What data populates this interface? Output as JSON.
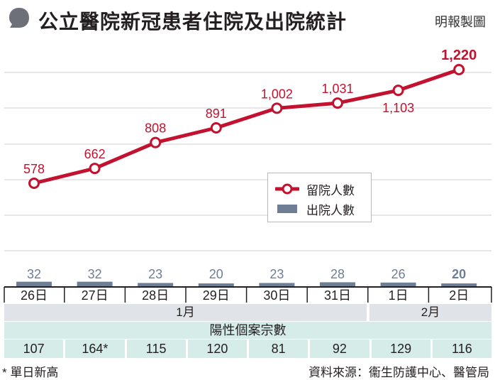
{
  "header": {
    "title": "公立醫院新冠患者住院及出院統計",
    "brand": "明報製圖"
  },
  "colors": {
    "line": "#c3122f",
    "bar": "#6e7f95",
    "bar_label": "#6e7f95",
    "month_row": "#e0e4e8",
    "cases_row": "#d6ece9"
  },
  "chart_data": {
    "type": "line",
    "categories": [
      "26日",
      "27日",
      "28日",
      "29日",
      "30日",
      "31日",
      "1日",
      "2日"
    ],
    "series": [
      {
        "name": "留院人數",
        "type": "line",
        "values": [
          578,
          662,
          808,
          891,
          1002,
          1031,
          1103,
          1220
        ],
        "labels": [
          "578",
          "662",
          "808",
          "891",
          "1,002",
          "1,031",
          "1,103",
          "1,220"
        ]
      },
      {
        "name": "出院人數",
        "type": "bar",
        "values": [
          32,
          32,
          23,
          20,
          23,
          28,
          26,
          20
        ]
      }
    ],
    "legend_position": "center-right",
    "grid": true
  },
  "legend": {
    "line_label": "留院人數",
    "bar_label": "出院人數"
  },
  "months": {
    "jan": "1月",
    "feb": "2月"
  },
  "cases": {
    "title": "陽性個案宗數",
    "values": [
      "107",
      "164*",
      "115",
      "120",
      "81",
      "92",
      "129",
      "116"
    ]
  },
  "footer": {
    "note": "* 單日新高",
    "source": "資料來源：衞生防護中心、醫管局"
  }
}
